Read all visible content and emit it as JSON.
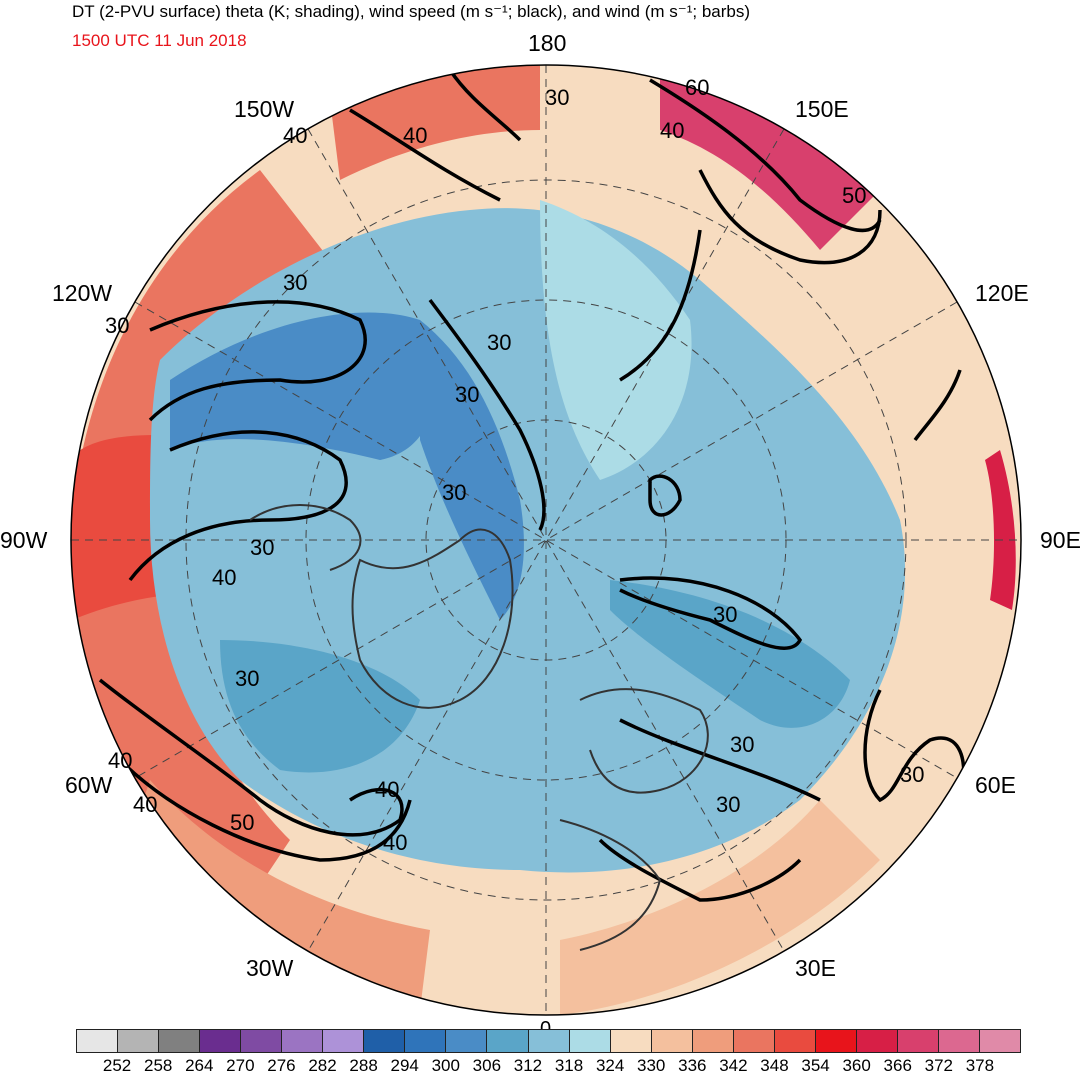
{
  "header": {
    "title": "DT (2-PVU surface) theta (K; shading), wind speed (m s⁻¹; black), and wind (m s⁻¹; barbs)",
    "valid_time": "1500 UTC 11 Jun 2018"
  },
  "map": {
    "projection": "north polar stereographic",
    "longitude_labels": {
      "lon_180": "180",
      "lon_150w": "150W",
      "lon_150e": "150E",
      "lon_120w": "120W",
      "lon_120e": "120E",
      "lon_90w": "90W",
      "lon_90e": "90E",
      "lon_60w": "60W",
      "lon_60e": "60E",
      "lon_30w": "30W",
      "lon_30e": "30E",
      "lon_0": "0"
    },
    "contour_labels": [
      "30",
      "30",
      "30",
      "30",
      "30",
      "30",
      "30",
      "30",
      "30",
      "30",
      "30",
      "30",
      "40",
      "40",
      "40",
      "40",
      "40",
      "40",
      "40",
      "40",
      "50",
      "50",
      "60"
    ]
  },
  "colorbar": {
    "colors": [
      "#e6e6e6",
      "#b4b4b4",
      "#808080",
      "#6a2d8f",
      "#7f4ba3",
      "#9b74c2",
      "#ad92d8",
      "#1f5fa8",
      "#2f74ba",
      "#4a8cc6",
      "#5aa5c8",
      "#86bfd8",
      "#acdce6",
      "#f7dcc0",
      "#f4c09e",
      "#ef9d7c",
      "#ea7560",
      "#e94b3f",
      "#e8141b",
      "#d71f46",
      "#d8406d",
      "#dc6890",
      "#e08aa8"
    ],
    "ticks": [
      "252",
      "258",
      "264",
      "270",
      "276",
      "282",
      "288",
      "294",
      "300",
      "306",
      "312",
      "318",
      "324",
      "330",
      "336",
      "342",
      "348",
      "354",
      "360",
      "366",
      "372",
      "378"
    ]
  }
}
